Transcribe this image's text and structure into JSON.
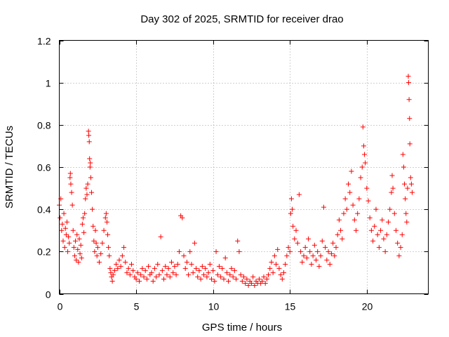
{
  "chart_data": {
    "type": "scatter",
    "title": "Day 302 of 2025, SRMTID for receiver drao",
    "xlabel": "GPS time / hours",
    "ylabel": "SRMTID / TECUs",
    "xlim": [
      0,
      24
    ],
    "ylim": [
      0,
      1.2
    ],
    "xticks": [
      0,
      5,
      10,
      15,
      20
    ],
    "xtick_labels": [
      "0",
      "5",
      "10",
      "15",
      "20"
    ],
    "yticks": [
      0,
      0.2,
      0.4,
      0.6,
      0.8,
      1,
      1.2
    ],
    "ytick_labels": [
      "0",
      "0.2",
      "0.4",
      "0.6",
      "0.8",
      "1",
      "1.2"
    ],
    "grid": true,
    "marker": "+",
    "color": "#ff0000",
    "series": [
      {
        "name": "SRMTID",
        "points": [
          [
            0.0,
            0.42
          ],
          [
            0.05,
            0.36
          ],
          [
            0.1,
            0.45
          ],
          [
            0.15,
            0.3
          ],
          [
            0.2,
            0.33
          ],
          [
            0.25,
            0.25
          ],
          [
            0.3,
            0.38
          ],
          [
            0.35,
            0.22
          ],
          [
            0.4,
            0.31
          ],
          [
            0.45,
            0.28
          ],
          [
            0.5,
            0.34
          ],
          [
            0.55,
            0.2
          ],
          [
            0.6,
            0.27
          ],
          [
            0.65,
            0.24
          ],
          [
            0.7,
            0.55
          ],
          [
            0.72,
            0.57
          ],
          [
            0.75,
            0.52
          ],
          [
            0.8,
            0.48
          ],
          [
            0.85,
            0.42
          ],
          [
            0.9,
            0.3
          ],
          [
            0.95,
            0.22
          ],
          [
            1.0,
            0.18
          ],
          [
            1.05,
            0.25
          ],
          [
            1.1,
            0.16
          ],
          [
            1.15,
            0.28
          ],
          [
            1.2,
            0.21
          ],
          [
            1.25,
            0.15
          ],
          [
            1.3,
            0.26
          ],
          [
            1.35,
            0.19
          ],
          [
            1.4,
            0.23
          ],
          [
            1.45,
            0.17
          ],
          [
            1.5,
            0.33
          ],
          [
            1.55,
            0.36
          ],
          [
            1.6,
            0.29
          ],
          [
            1.65,
            0.38
          ],
          [
            1.7,
            0.45
          ],
          [
            1.75,
            0.5
          ],
          [
            1.8,
            0.47
          ],
          [
            1.85,
            0.52
          ],
          [
            1.9,
            0.77
          ],
          [
            1.92,
            0.75
          ],
          [
            1.95,
            0.72
          ],
          [
            1.97,
            0.64
          ],
          [
            2.0,
            0.6
          ],
          [
            2.02,
            0.62
          ],
          [
            2.05,
            0.55
          ],
          [
            2.1,
            0.48
          ],
          [
            2.15,
            0.4
          ],
          [
            2.2,
            0.32
          ],
          [
            2.25,
            0.25
          ],
          [
            2.3,
            0.2
          ],
          [
            2.35,
            0.3
          ],
          [
            2.4,
            0.24
          ],
          [
            2.45,
            0.18
          ],
          [
            2.5,
            0.22
          ],
          [
            2.6,
            0.15
          ],
          [
            2.7,
            0.19
          ],
          [
            2.8,
            0.24
          ],
          [
            2.9,
            0.3
          ],
          [
            3.0,
            0.36
          ],
          [
            3.05,
            0.38
          ],
          [
            3.1,
            0.34
          ],
          [
            3.15,
            0.28
          ],
          [
            3.2,
            0.22
          ],
          [
            3.25,
            0.18
          ],
          [
            3.3,
            0.12
          ],
          [
            3.35,
            0.1
          ],
          [
            3.4,
            0.08
          ],
          [
            3.45,
            0.06
          ],
          [
            3.5,
            0.09
          ],
          [
            3.6,
            0.11
          ],
          [
            3.7,
            0.14
          ],
          [
            3.8,
            0.12
          ],
          [
            3.9,
            0.16
          ],
          [
            4.0,
            0.13
          ],
          [
            4.1,
            0.18
          ],
          [
            4.2,
            0.22
          ],
          [
            4.3,
            0.15
          ],
          [
            4.4,
            0.1
          ],
          [
            4.5,
            0.12
          ],
          [
            4.6,
            0.09
          ],
          [
            4.7,
            0.14
          ],
          [
            4.8,
            0.11
          ],
          [
            4.9,
            0.08
          ],
          [
            5.0,
            0.07
          ],
          [
            5.1,
            0.1
          ],
          [
            5.2,
            0.06
          ],
          [
            5.3,
            0.09
          ],
          [
            5.4,
            0.12
          ],
          [
            5.5,
            0.08
          ],
          [
            5.6,
            0.11
          ],
          [
            5.7,
            0.07
          ],
          [
            5.8,
            0.13
          ],
          [
            5.9,
            0.09
          ],
          [
            6.0,
            0.1
          ],
          [
            6.1,
            0.06
          ],
          [
            6.2,
            0.12
          ],
          [
            6.3,
            0.08
          ],
          [
            6.4,
            0.14
          ],
          [
            6.5,
            0.09
          ],
          [
            6.6,
            0.27
          ],
          [
            6.7,
            0.11
          ],
          [
            6.8,
            0.07
          ],
          [
            6.9,
            0.13
          ],
          [
            7.0,
            0.09
          ],
          [
            7.1,
            0.12
          ],
          [
            7.2,
            0.08
          ],
          [
            7.3,
            0.15
          ],
          [
            7.4,
            0.1
          ],
          [
            7.5,
            0.13
          ],
          [
            7.6,
            0.09
          ],
          [
            7.7,
            0.14
          ],
          [
            7.8,
            0.2
          ],
          [
            7.9,
            0.37
          ],
          [
            8.0,
            0.36
          ],
          [
            8.1,
            0.18
          ],
          [
            8.2,
            0.12
          ],
          [
            8.3,
            0.15
          ],
          [
            8.4,
            0.09
          ],
          [
            8.5,
            0.2
          ],
          [
            8.6,
            0.14
          ],
          [
            8.7,
            0.1
          ],
          [
            8.8,
            0.24
          ],
          [
            8.9,
            0.12
          ],
          [
            9.0,
            0.08
          ],
          [
            9.1,
            0.11
          ],
          [
            9.2,
            0.07
          ],
          [
            9.3,
            0.13
          ],
          [
            9.4,
            0.09
          ],
          [
            9.5,
            0.12
          ],
          [
            9.6,
            0.08
          ],
          [
            9.7,
            0.1
          ],
          [
            9.8,
            0.14
          ],
          [
            9.9,
            0.07
          ],
          [
            10.0,
            0.11
          ],
          [
            10.1,
            0.06
          ],
          [
            10.2,
            0.2
          ],
          [
            10.3,
            0.09
          ],
          [
            10.4,
            0.13
          ],
          [
            10.5,
            0.08
          ],
          [
            10.6,
            0.12
          ],
          [
            10.7,
            0.07
          ],
          [
            10.8,
            0.17
          ],
          [
            10.9,
            0.1
          ],
          [
            11.0,
            0.06
          ],
          [
            11.1,
            0.09
          ],
          [
            11.2,
            0.12
          ],
          [
            11.3,
            0.08
          ],
          [
            11.4,
            0.11
          ],
          [
            11.5,
            0.07
          ],
          [
            11.6,
            0.25
          ],
          [
            11.7,
            0.2
          ],
          [
            11.8,
            0.09
          ],
          [
            11.9,
            0.06
          ],
          [
            12.0,
            0.08
          ],
          [
            12.1,
            0.05
          ],
          [
            12.2,
            0.07
          ],
          [
            12.3,
            0.04
          ],
          [
            12.4,
            0.06
          ],
          [
            12.5,
            0.05
          ],
          [
            12.6,
            0.08
          ],
          [
            12.7,
            0.04
          ],
          [
            12.8,
            0.06
          ],
          [
            12.9,
            0.05
          ],
          [
            13.0,
            0.07
          ],
          [
            13.1,
            0.05
          ],
          [
            13.2,
            0.06
          ],
          [
            13.3,
            0.08
          ],
          [
            13.4,
            0.05
          ],
          [
            13.5,
            0.07
          ],
          [
            13.6,
            0.09
          ],
          [
            13.7,
            0.12
          ],
          [
            13.8,
            0.15
          ],
          [
            13.9,
            0.1
          ],
          [
            14.0,
            0.18
          ],
          [
            14.1,
            0.14
          ],
          [
            14.2,
            0.21
          ],
          [
            14.3,
            0.12
          ],
          [
            14.4,
            0.09
          ],
          [
            14.5,
            0.07
          ],
          [
            14.6,
            0.1
          ],
          [
            14.7,
            0.14
          ],
          [
            14.8,
            0.18
          ],
          [
            14.9,
            0.22
          ],
          [
            15.0,
            0.2
          ],
          [
            15.05,
            0.38
          ],
          [
            15.1,
            0.45
          ],
          [
            15.15,
            0.4
          ],
          [
            15.2,
            0.32
          ],
          [
            15.3,
            0.26
          ],
          [
            15.4,
            0.3
          ],
          [
            15.5,
            0.24
          ],
          [
            15.6,
            0.47
          ],
          [
            15.7,
            0.2
          ],
          [
            15.8,
            0.15
          ],
          [
            15.9,
            0.18
          ],
          [
            16.0,
            0.22
          ],
          [
            16.1,
            0.17
          ],
          [
            16.2,
            0.26
          ],
          [
            16.3,
            0.2
          ],
          [
            16.4,
            0.14
          ],
          [
            16.5,
            0.18
          ],
          [
            16.6,
            0.23
          ],
          [
            16.7,
            0.16
          ],
          [
            16.8,
            0.2
          ],
          [
            16.9,
            0.13
          ],
          [
            17.0,
            0.18
          ],
          [
            17.1,
            0.25
          ],
          [
            17.2,
            0.41
          ],
          [
            17.3,
            0.22
          ],
          [
            17.4,
            0.16
          ],
          [
            17.5,
            0.2
          ],
          [
            17.6,
            0.14
          ],
          [
            17.7,
            0.19
          ],
          [
            17.8,
            0.24
          ],
          [
            17.9,
            0.18
          ],
          [
            18.0,
            0.22
          ],
          [
            18.1,
            0.28
          ],
          [
            18.2,
            0.35
          ],
          [
            18.3,
            0.3
          ],
          [
            18.4,
            0.26
          ],
          [
            18.5,
            0.38
          ],
          [
            18.6,
            0.45
          ],
          [
            18.7,
            0.4
          ],
          [
            18.8,
            0.52
          ],
          [
            18.9,
            0.48
          ],
          [
            19.0,
            0.58
          ],
          [
            19.1,
            0.42
          ],
          [
            19.2,
            0.35
          ],
          [
            19.3,
            0.3
          ],
          [
            19.4,
            0.38
          ],
          [
            19.5,
            0.45
          ],
          [
            19.6,
            0.55
          ],
          [
            19.7,
            0.6
          ],
          [
            19.75,
            0.79
          ],
          [
            19.8,
            0.7
          ],
          [
            19.85,
            0.66
          ],
          [
            19.9,
            0.62
          ],
          [
            20.0,
            0.5
          ],
          [
            20.1,
            0.44
          ],
          [
            20.2,
            0.36
          ],
          [
            20.3,
            0.3
          ],
          [
            20.4,
            0.25
          ],
          [
            20.5,
            0.32
          ],
          [
            20.6,
            0.4
          ],
          [
            20.7,
            0.28
          ],
          [
            20.8,
            0.22
          ],
          [
            20.9,
            0.3
          ],
          [
            21.0,
            0.35
          ],
          [
            21.1,
            0.26
          ],
          [
            21.2,
            0.2
          ],
          [
            21.3,
            0.28
          ],
          [
            21.4,
            0.34
          ],
          [
            21.5,
            0.4
          ],
          [
            21.6,
            0.48
          ],
          [
            21.65,
            0.56
          ],
          [
            21.7,
            0.5
          ],
          [
            21.8,
            0.38
          ],
          [
            21.9,
            0.3
          ],
          [
            22.0,
            0.24
          ],
          [
            22.1,
            0.18
          ],
          [
            22.2,
            0.22
          ],
          [
            22.3,
            0.28
          ],
          [
            22.35,
            0.66
          ],
          [
            22.4,
            0.6
          ],
          [
            22.45,
            0.52
          ],
          [
            22.5,
            0.45
          ],
          [
            22.55,
            0.38
          ],
          [
            22.6,
            0.34
          ],
          [
            22.65,
            0.5
          ],
          [
            22.7,
            1.03
          ],
          [
            22.72,
            1.0
          ],
          [
            22.75,
            0.92
          ],
          [
            22.78,
            0.83
          ],
          [
            22.8,
            0.71
          ],
          [
            22.85,
            0.55
          ],
          [
            22.9,
            0.52
          ],
          [
            22.95,
            0.48
          ]
        ]
      }
    ]
  }
}
